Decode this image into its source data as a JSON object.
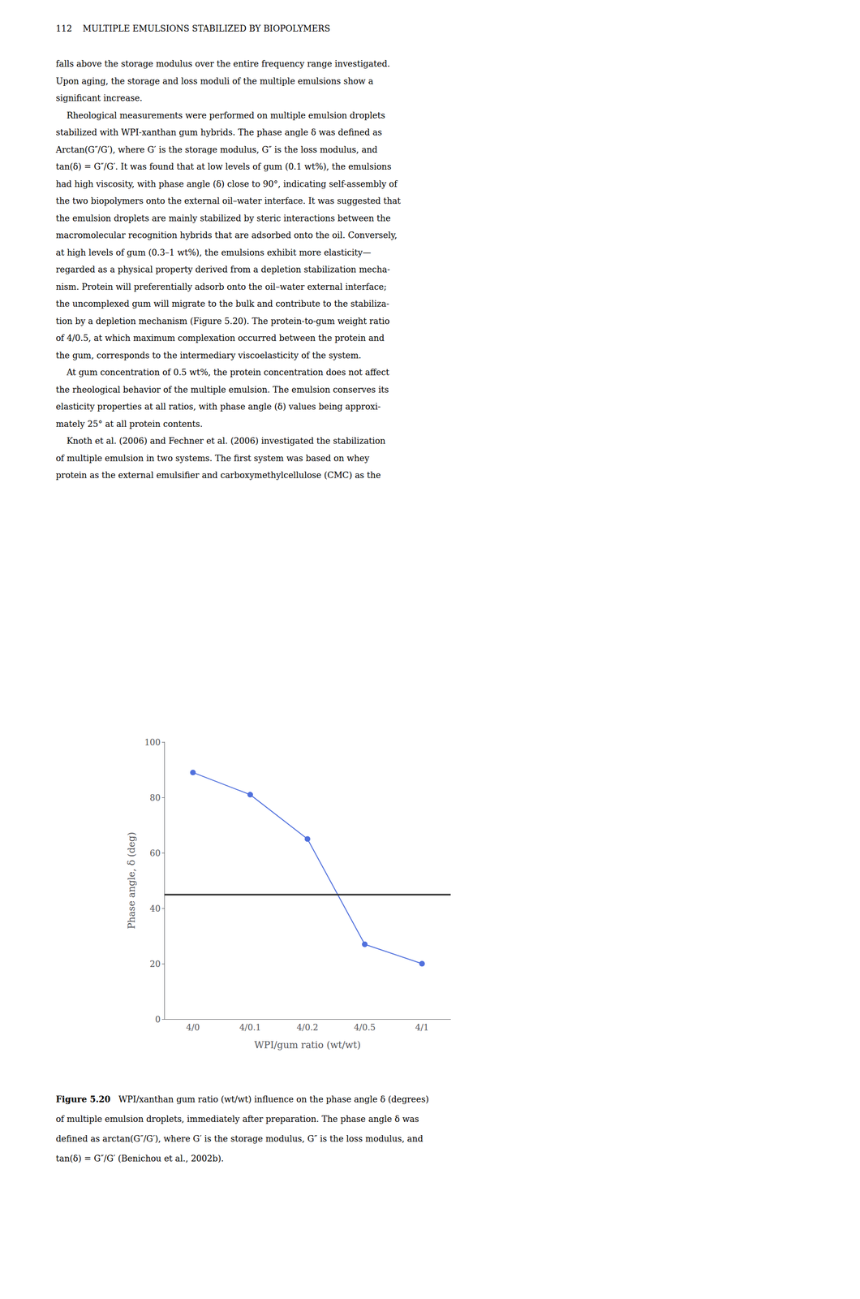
{
  "header": "112    MULTIPLE EMULSIONS STABILIZED BY BIOPOLYMERS",
  "body_lines": [
    "falls above the storage modulus over the entire frequency range investigated.",
    "Upon aging, the storage and loss moduli of the multiple emulsions show a",
    "significant increase.",
    "    Rheological measurements were performed on multiple emulsion droplets",
    "stabilized with WPI-xanthan gum hybrids. The phase angle δ was defined as",
    "Arctan(G″/G′), where G′ is the storage modulus, G″ is the loss modulus, and",
    "tan(δ) = G″/G′. It was found that at low levels of gum (0.1 wt%), the emulsions",
    "had high viscosity, with phase angle (δ) close to 90°, indicating self-assembly of",
    "the two biopolymers onto the external oil–water interface. It was suggested that",
    "the emulsion droplets are mainly stabilized by steric interactions between the",
    "macromolecular recognition hybrids that are adsorbed onto the oil. Conversely,",
    "at high levels of gum (0.3–1 wt%), the emulsions exhibit more elasticity—",
    "regarded as a physical property derived from a depletion stabilization mecha-",
    "nism. Protein will preferentially adsorb onto the oil–water external interface;",
    "the uncomplexed gum will migrate to the bulk and contribute to the stabiliza-",
    "tion by a depletion mechanism (Figure 5.20). The protein-to-gum weight ratio",
    "of 4/0.5, at which maximum complexation occurred between the protein and",
    "the gum, corresponds to the intermediary viscoelasticity of the system.",
    "    At gum concentration of 0.5 wt%, the protein concentration does not affect",
    "the rheological behavior of the multiple emulsion. The emulsion conserves its",
    "elasticity properties at all ratios, with phase angle (δ) values being approxi-",
    "mately 25° at all protein contents.",
    "    Knoth et al. (2006) and Fechner et al. (2006) investigated the stabilization",
    "of multiple emulsion in two systems. The first system was based on whey",
    "protein as the external emulsifier and carboxymethylcellulose (CMC) as the"
  ],
  "chart_data": {
    "type": "line",
    "categories": [
      "4/0",
      "4/0.1",
      "4/0.2",
      "4/0.5",
      "4/1"
    ],
    "values": [
      89,
      81,
      65,
      27,
      20
    ],
    "reference_line": 45,
    "xlabel": "WPI/gum ratio (wt/wt)",
    "ylabel": "Phase angle, δ (deg)",
    "ylim": [
      0,
      100
    ],
    "yticks": [
      0,
      20,
      40,
      60,
      80,
      100
    ],
    "grid": false,
    "marker": "circle",
    "line_style": "solid"
  },
  "caption_label": "Figure 5.20",
  "caption_lines": [
    "   WPI/xanthan gum ratio (wt/wt) influence on the phase angle δ (degrees)",
    "of multiple emulsion droplets, immediately after preparation. The phase angle δ was",
    "defined as arctan(G″/G′), where G′ is the storage modulus, G″ is the loss modulus, and",
    "tan(δ) = G″/G′ (Benichou et al., 2002b)."
  ]
}
